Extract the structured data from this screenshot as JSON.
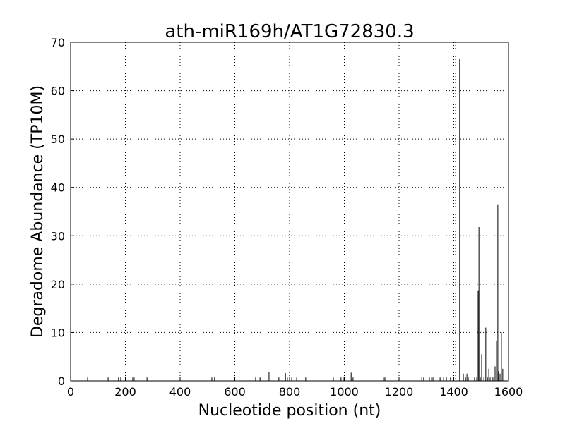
{
  "chart_data": {
    "type": "spike",
    "title": "ath-miR169h/AT1G72830.3",
    "x_label": "Nucleotide position (nt)",
    "y_label": "Degradome Abundance (TP10M)",
    "xlim": [
      0,
      1600
    ],
    "xticks": [
      0,
      200,
      400,
      600,
      800,
      1000,
      1200,
      1400,
      1600
    ],
    "ylim": [
      0,
      70
    ],
    "yticks": [
      0,
      10,
      20,
      30,
      40,
      50,
      60,
      70
    ],
    "grid": true,
    "series": [
      {
        "color": "#000000",
        "x": [
          62,
          137,
          175,
          183,
          227,
          232,
          279,
          516,
          526,
          676,
          692,
          725,
          761,
          785,
          792,
          800,
          808,
          826,
          859,
          960,
          988,
          996,
          1001,
          1025,
          1032,
          1146,
          1151,
          1283,
          1290,
          1311,
          1319,
          1324,
          1350,
          1363,
          1373,
          1388,
          1435,
          1443,
          1448,
          1453,
          1476,
          1484,
          1489,
          1492,
          1497,
          1502,
          1510,
          1517,
          1523,
          1528,
          1533,
          1541,
          1546,
          1551,
          1556,
          1561,
          1564,
          1569,
          1574,
          1579
        ],
        "values": [
          0.7,
          0.7,
          0.7,
          0.7,
          0.7,
          0.7,
          0.7,
          0.7,
          0.7,
          0.7,
          0.7,
          1.9,
          0.7,
          1.6,
          0.7,
          0.7,
          0.7,
          0.7,
          0.7,
          0.7,
          0.7,
          0.7,
          0.7,
          1.7,
          0.7,
          0.7,
          0.7,
          0.7,
          0.7,
          0.7,
          0.7,
          0.7,
          0.7,
          0.7,
          0.7,
          0.7,
          1.5,
          0.7,
          1.5,
          0.7,
          0.7,
          0.7,
          18.7,
          31.8,
          0.7,
          5.5,
          0.7,
          11,
          0.7,
          2.5,
          0.7,
          0.7,
          0.7,
          3,
          8.3,
          36.5,
          2,
          1.5,
          10,
          2.5
        ]
      },
      {
        "color": "#ff0000",
        "x": [
          1422
        ],
        "values": [
          66.5
        ]
      }
    ],
    "target": {
      "x": 1406,
      "color": "#ff0000"
    }
  }
}
